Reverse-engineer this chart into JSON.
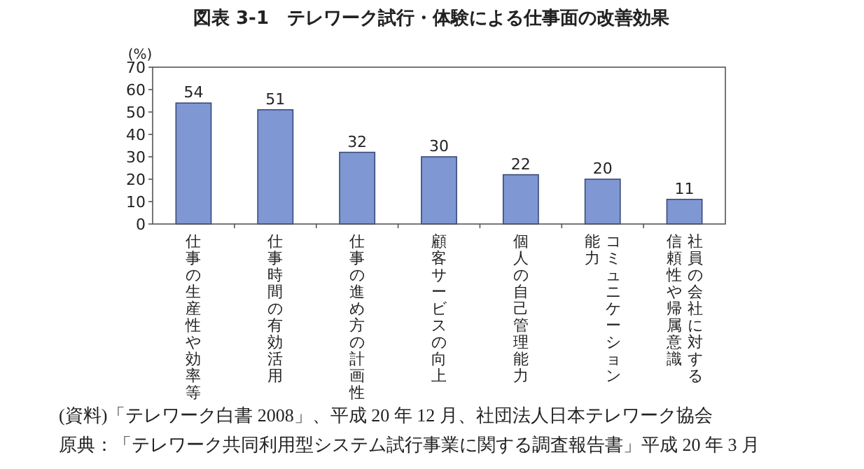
{
  "chart_data": {
    "type": "bar",
    "title": "図表 3-1　テレワーク試行・体験による仕事面の改善効果",
    "ylabel": "(%)",
    "categories": [
      "仕事の生産性や効率等",
      "仕事時間の有効活用",
      "仕事の進め方の計画性",
      "顧客サービスの向上",
      "個人の自己管理能力",
      "コミュニケーション能力",
      "社員の会社に対する信頼性や帰属意識"
    ],
    "values": [
      54,
      51,
      32,
      30,
      22,
      20,
      11
    ],
    "color": "#7f98d4",
    "ylim": [
      0,
      70
    ],
    "yticks": [
      0,
      10,
      20,
      30,
      40,
      50,
      60,
      70
    ],
    "data_labels": true,
    "grid": false,
    "annotations": [
      "(資料)「テレワーク白書 2008」、平成 20 年 12 月、社団法人日本テレワーク協会",
      "原典：「テレワーク共同利用型システム試行事業に関する調査報告書」平成 20 年 3 月"
    ]
  }
}
